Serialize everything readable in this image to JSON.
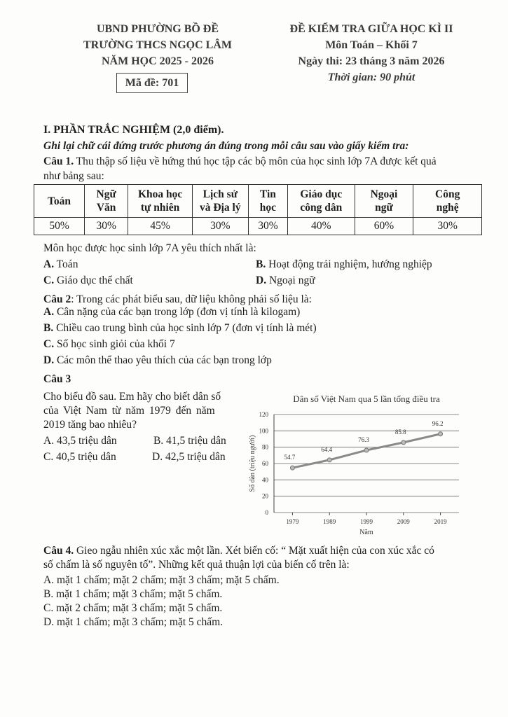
{
  "header_left": {
    "line1": "UBND PHƯỜNG BỒ ĐỀ",
    "line2": "TRƯỜNG THCS NGỌC LÂM",
    "line3": "NĂM HỌC 2025 - 2026",
    "exam_code": "Mã đề: 701"
  },
  "header_right": {
    "line1": "ĐỀ KIỂM TRA GIỮA HỌC KÌ II",
    "line2": "Môn Toán – Khối 7",
    "line3": "Ngày thi: 23 tháng 3 năm 2026",
    "line4": "Thời gian: 90 phút"
  },
  "section1": {
    "title": "I. PHẦN TRẮC NGHIỆM (2,0 điểm).",
    "instruction": "Ghi lại chữ cái đứng trước phương án đúng trong mỗi câu sau vào giấy kiểm tra:"
  },
  "q1": {
    "label": "Câu 1.",
    "text1": " Thu thập số liệu về hứng thú học tập các bộ môn của học sinh lớp 7A được kết quả",
    "text2": "như bảng sau:",
    "table": {
      "headers": [
        [
          "Toán"
        ],
        [
          "Ngữ",
          "Văn"
        ],
        [
          "Khoa học",
          "tự nhiên"
        ],
        [
          "Lịch sử",
          "và Địa lý"
        ],
        [
          "Tin",
          "học"
        ],
        [
          "Giáo dục",
          "công dân"
        ],
        [
          "Ngoại",
          "ngữ"
        ],
        [
          "Công",
          "nghệ"
        ]
      ],
      "values": [
        "50%",
        "30%",
        "45%",
        "30%",
        "30%",
        "40%",
        "60%",
        "30%"
      ]
    },
    "question": "Môn học được học sinh lớp 7A yêu thích nhất là:",
    "options": [
      {
        "letter": "A.",
        "text": " Toán"
      },
      {
        "letter": "B.",
        "text": " Hoạt động trải nghiệm, hướng nghiệp"
      },
      {
        "letter": "C.",
        "text": " Giáo dục thể chất"
      },
      {
        "letter": "D.",
        "text": " Ngoại ngữ"
      }
    ]
  },
  "q2": {
    "label": "Câu 2",
    "text": ": Trong các phát biểu sau, dữ liệu không phải số liệu là:",
    "options": [
      {
        "letter": "A.",
        "text": " Cân nặng của các bạn trong lớp (đơn vị tính là kilogam)"
      },
      {
        "letter": "B.",
        "text": " Chiều cao trung bình của học sinh lớp 7 (đơn vị tính là mét)"
      },
      {
        "letter": "C.",
        "text": " Số học sinh giỏi của khối 7"
      },
      {
        "letter": "D.",
        "text": " Các môn thể thao yêu thích của các bạn trong lớp"
      }
    ]
  },
  "q3": {
    "label": "Câu 3",
    "line1": "Cho biểu đồ sau. Em hãy cho biết dân số",
    "line2": "của Việt Nam từ năm 1979 đến năm",
    "line3": "2019 tăng bao nhiêu?",
    "options": [
      "A. 43,5 triệu dân",
      "B. 41,5 triệu dân",
      "C. 40,5 triệu dân",
      "D. 42,5 triệu dân"
    ]
  },
  "chart_data": {
    "type": "line",
    "title": "Dân số Việt Nam qua 5 lần tổng điều tra",
    "xlabel": "Năm",
    "ylabel": "Số dân (triệu người)",
    "categories": [
      "1979",
      "1989",
      "1999",
      "2009",
      "2019"
    ],
    "values": [
      54.7,
      64.4,
      76.3,
      85.8,
      96.2
    ],
    "ylim": [
      0,
      120
    ],
    "yticks": [
      0,
      20,
      40,
      60,
      80,
      100,
      120
    ],
    "grid": true,
    "line_color": "#8a8a8a"
  },
  "q4": {
    "label": "Câu 4.",
    "line1": "  Gieo ngẫu nhiên xúc xắc một lần. Xét biến cố: “ Mặt xuất hiện của con xúc xắc có",
    "line2": "số chấm là số nguyên tố”. Những kết quả thuận lợi của biến cố trên là:",
    "options": [
      "A. mặt 1 chấm; mặt 2 chấm; mặt 3 chấm; mặt 5 chấm.",
      "B. mặt 1 chấm; mặt 3 chấm; mặt 5 chấm.",
      "C. mặt 2 chấm; mặt 3 chấm; mặt  5 chấm.",
      "D. mặt 1  chấm; mặt 3 chấm; mặt 5 chấm."
    ]
  }
}
